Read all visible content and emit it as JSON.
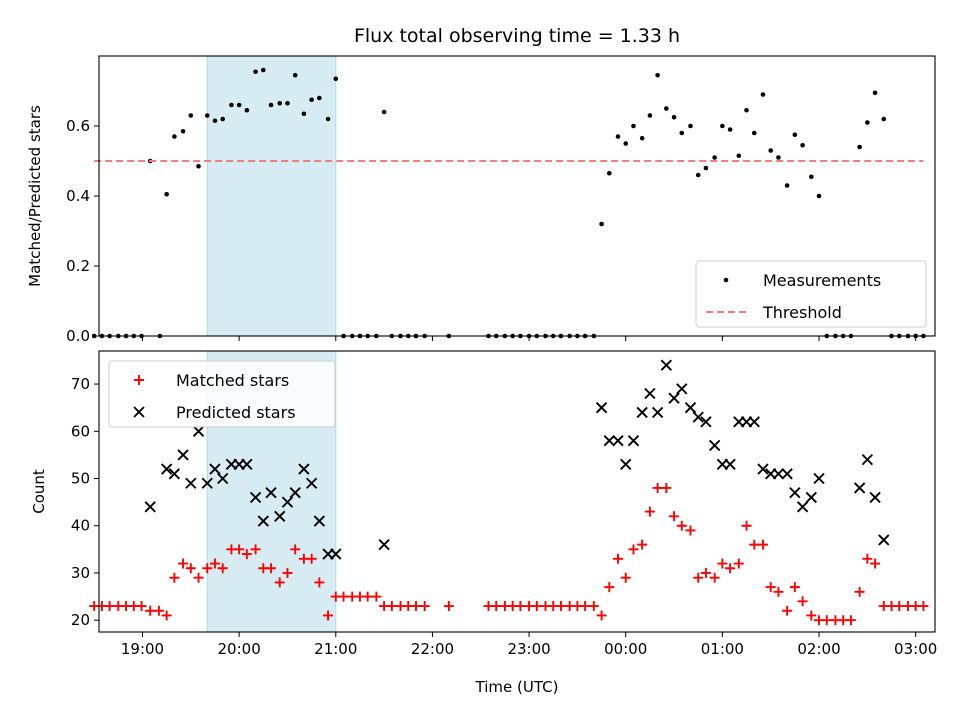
{
  "title": "Flux total observing time = 1.33 h",
  "xlabel": "Time (UTC)",
  "x_ticks": [
    {
      "t": 1.0,
      "label": "19:00"
    },
    {
      "t": 2.0,
      "label": "20:00"
    },
    {
      "t": 3.0,
      "label": "21:00"
    },
    {
      "t": 4.0,
      "label": "22:00"
    },
    {
      "t": 5.0,
      "label": "23:00"
    },
    {
      "t": 6.0,
      "label": "00:00"
    },
    {
      "t": 7.0,
      "label": "01:00"
    },
    {
      "t": 8.0,
      "label": "02:00"
    },
    {
      "t": 9.0,
      "label": "03:00"
    }
  ],
  "highlight": {
    "start": 1.67,
    "end": 3.0,
    "color": "#add8e6"
  },
  "chart_data": [
    {
      "type": "scatter",
      "ylabel": "Matched/Predicted stars",
      "xlim": [
        0.55,
        9.2
      ],
      "ylim": [
        0,
        0.8
      ],
      "y_ticks": [
        {
          "v": 0.0,
          "label": "0.0"
        },
        {
          "v": 0.2,
          "label": "0.2"
        },
        {
          "v": 0.4,
          "label": "0.4"
        },
        {
          "v": 0.6,
          "label": "0.6"
        }
      ],
      "legend": {
        "position": "lower-right"
      },
      "series": [
        {
          "name": "Measurements",
          "color": "#000000",
          "marker": "dot",
          "points": [
            [
              0.5,
              0
            ],
            [
              0.58,
              0
            ],
            [
              0.66,
              0
            ],
            [
              0.75,
              0
            ],
            [
              0.83,
              0
            ],
            [
              0.91,
              0
            ],
            [
              0.99,
              0
            ],
            [
              1.08,
              0.5
            ],
            [
              1.18,
              0
            ],
            [
              1.25,
              0.405
            ],
            [
              1.33,
              0.57
            ],
            [
              1.42,
              0.585
            ],
            [
              1.5,
              0.63
            ],
            [
              1.58,
              0.485
            ],
            [
              1.67,
              0.63
            ],
            [
              1.75,
              0.615
            ],
            [
              1.83,
              0.62
            ],
            [
              1.92,
              0.66
            ],
            [
              2.0,
              0.66
            ],
            [
              2.08,
              0.645
            ],
            [
              2.17,
              0.755
            ],
            [
              2.25,
              0.76
            ],
            [
              2.33,
              0.66
            ],
            [
              2.42,
              0.665
            ],
            [
              2.5,
              0.665
            ],
            [
              2.58,
              0.745
            ],
            [
              2.67,
              0.635
            ],
            [
              2.75,
              0.675
            ],
            [
              2.83,
              0.68
            ],
            [
              2.92,
              0.62
            ],
            [
              3.0,
              0.735
            ],
            [
              3.08,
              0
            ],
            [
              3.17,
              0
            ],
            [
              3.25,
              0
            ],
            [
              3.33,
              0
            ],
            [
              3.42,
              0
            ],
            [
              3.5,
              0.64
            ],
            [
              3.58,
              0
            ],
            [
              3.67,
              0
            ],
            [
              3.75,
              0
            ],
            [
              3.83,
              0
            ],
            [
              3.92,
              0
            ],
            [
              4.17,
              0
            ],
            [
              4.58,
              0
            ],
            [
              4.66,
              0
            ],
            [
              4.75,
              0
            ],
            [
              4.83,
              0
            ],
            [
              4.91,
              0
            ],
            [
              5.0,
              0
            ],
            [
              5.08,
              0
            ],
            [
              5.17,
              0
            ],
            [
              5.25,
              0
            ],
            [
              5.33,
              0
            ],
            [
              5.42,
              0
            ],
            [
              5.5,
              0
            ],
            [
              5.58,
              0
            ],
            [
              5.67,
              0
            ],
            [
              5.75,
              0.32
            ],
            [
              5.83,
              0.465
            ],
            [
              5.92,
              0.57
            ],
            [
              6.0,
              0.55
            ],
            [
              6.08,
              0.6
            ],
            [
              6.17,
              0.565
            ],
            [
              6.25,
              0.63
            ],
            [
              6.33,
              0.745
            ],
            [
              6.42,
              0.65
            ],
            [
              6.5,
              0.625
            ],
            [
              6.58,
              0.58
            ],
            [
              6.67,
              0.6
            ],
            [
              6.75,
              0.46
            ],
            [
              6.83,
              0.48
            ],
            [
              6.92,
              0.51
            ],
            [
              7.0,
              0.6
            ],
            [
              7.08,
              0.59
            ],
            [
              7.17,
              0.515
            ],
            [
              7.25,
              0.645
            ],
            [
              7.33,
              0.58
            ],
            [
              7.42,
              0.69
            ],
            [
              7.5,
              0.53
            ],
            [
              7.58,
              0.51
            ],
            [
              7.67,
              0.43
            ],
            [
              7.75,
              0.575
            ],
            [
              7.83,
              0.545
            ],
            [
              7.92,
              0.455
            ],
            [
              8.0,
              0.4
            ],
            [
              8.08,
              0
            ],
            [
              8.17,
              0
            ],
            [
              8.25,
              0
            ],
            [
              8.33,
              0
            ],
            [
              8.42,
              0.54
            ],
            [
              8.5,
              0.61
            ],
            [
              8.58,
              0.695
            ],
            [
              8.67,
              0.62
            ],
            [
              8.75,
              0
            ],
            [
              8.83,
              0
            ],
            [
              8.92,
              0
            ],
            [
              9.0,
              0
            ],
            [
              9.08,
              0
            ]
          ]
        },
        {
          "name": "Threshold",
          "color": "#f08080",
          "marker": "dashed-line",
          "points": [
            [
              0.5,
              0.5
            ],
            [
              9.08,
              0.5
            ]
          ]
        }
      ]
    },
    {
      "type": "scatter",
      "ylabel": "Count",
      "xlim": [
        0.55,
        9.2
      ],
      "ylim": [
        17.5,
        77
      ],
      "y_ticks": [
        {
          "v": 20,
          "label": "20"
        },
        {
          "v": 30,
          "label": "30"
        },
        {
          "v": 40,
          "label": "40"
        },
        {
          "v": 50,
          "label": "50"
        },
        {
          "v": 60,
          "label": "60"
        },
        {
          "v": 70,
          "label": "70"
        }
      ],
      "legend": {
        "position": "top-left"
      },
      "series": [
        {
          "name": "Matched stars",
          "color": "#ff0000",
          "marker": "plus",
          "points": [
            [
              0.5,
              23
            ],
            [
              0.58,
              23
            ],
            [
              0.66,
              23
            ],
            [
              0.75,
              23
            ],
            [
              0.83,
              23
            ],
            [
              0.91,
              23
            ],
            [
              0.99,
              23
            ],
            [
              1.08,
              22
            ],
            [
              1.17,
              22
            ],
            [
              1.25,
              21
            ],
            [
              1.33,
              29
            ],
            [
              1.42,
              32
            ],
            [
              1.5,
              31
            ],
            [
              1.58,
              29
            ],
            [
              1.67,
              31
            ],
            [
              1.75,
              32
            ],
            [
              1.83,
              31
            ],
            [
              1.92,
              35
            ],
            [
              2.0,
              35
            ],
            [
              2.08,
              34
            ],
            [
              2.17,
              35
            ],
            [
              2.25,
              31
            ],
            [
              2.33,
              31
            ],
            [
              2.42,
              28
            ],
            [
              2.5,
              30
            ],
            [
              2.58,
              35
            ],
            [
              2.67,
              33
            ],
            [
              2.75,
              33
            ],
            [
              2.83,
              28
            ],
            [
              2.92,
              21
            ],
            [
              3.0,
              25
            ],
            [
              3.08,
              25
            ],
            [
              3.17,
              25
            ],
            [
              3.25,
              25
            ],
            [
              3.33,
              25
            ],
            [
              3.42,
              25
            ],
            [
              3.5,
              23
            ],
            [
              3.58,
              23
            ],
            [
              3.67,
              23
            ],
            [
              3.75,
              23
            ],
            [
              3.83,
              23
            ],
            [
              3.92,
              23
            ],
            [
              4.17,
              23
            ],
            [
              4.58,
              23
            ],
            [
              4.66,
              23
            ],
            [
              4.75,
              23
            ],
            [
              4.83,
              23
            ],
            [
              4.91,
              23
            ],
            [
              5.0,
              23
            ],
            [
              5.08,
              23
            ],
            [
              5.17,
              23
            ],
            [
              5.25,
              23
            ],
            [
              5.33,
              23
            ],
            [
              5.42,
              23
            ],
            [
              5.5,
              23
            ],
            [
              5.58,
              23
            ],
            [
              5.67,
              23
            ],
            [
              5.75,
              21
            ],
            [
              5.83,
              27
            ],
            [
              5.92,
              33
            ],
            [
              6.0,
              29
            ],
            [
              6.08,
              35
            ],
            [
              6.17,
              36
            ],
            [
              6.25,
              43
            ],
            [
              6.33,
              48
            ],
            [
              6.42,
              48
            ],
            [
              6.5,
              42
            ],
            [
              6.58,
              40
            ],
            [
              6.67,
              39
            ],
            [
              6.75,
              29
            ],
            [
              6.83,
              30
            ],
            [
              6.92,
              29
            ],
            [
              7.0,
              32
            ],
            [
              7.08,
              31
            ],
            [
              7.17,
              32
            ],
            [
              7.25,
              40
            ],
            [
              7.33,
              36
            ],
            [
              7.42,
              36
            ],
            [
              7.5,
              27
            ],
            [
              7.58,
              26
            ],
            [
              7.67,
              22
            ],
            [
              7.75,
              27
            ],
            [
              7.83,
              24
            ],
            [
              7.92,
              21
            ],
            [
              8.0,
              20
            ],
            [
              8.08,
              20
            ],
            [
              8.17,
              20
            ],
            [
              8.25,
              20
            ],
            [
              8.33,
              20
            ],
            [
              8.42,
              26
            ],
            [
              8.5,
              33
            ],
            [
              8.58,
              32
            ],
            [
              8.67,
              23
            ],
            [
              8.75,
              23
            ],
            [
              8.83,
              23
            ],
            [
              8.92,
              23
            ],
            [
              9.0,
              23
            ],
            [
              9.08,
              23
            ]
          ]
        },
        {
          "name": "Predicted stars",
          "color": "#000000",
          "marker": "x",
          "points": [
            [
              1.08,
              44
            ],
            [
              1.25,
              52
            ],
            [
              1.33,
              51
            ],
            [
              1.42,
              55
            ],
            [
              1.5,
              49
            ],
            [
              1.58,
              60
            ],
            [
              1.67,
              49
            ],
            [
              1.75,
              52
            ],
            [
              1.83,
              50
            ],
            [
              1.92,
              53
            ],
            [
              2.0,
              53
            ],
            [
              2.08,
              53
            ],
            [
              2.17,
              46
            ],
            [
              2.25,
              41
            ],
            [
              2.33,
              47
            ],
            [
              2.42,
              42
            ],
            [
              2.5,
              45
            ],
            [
              2.58,
              47
            ],
            [
              2.67,
              52
            ],
            [
              2.75,
              49
            ],
            [
              2.83,
              41
            ],
            [
              2.92,
              34
            ],
            [
              3.0,
              34
            ],
            [
              3.5,
              36
            ],
            [
              5.75,
              65
            ],
            [
              5.83,
              58
            ],
            [
              5.92,
              58
            ],
            [
              6.0,
              53
            ],
            [
              6.08,
              58
            ],
            [
              6.17,
              64
            ],
            [
              6.25,
              68
            ],
            [
              6.33,
              64
            ],
            [
              6.42,
              74
            ],
            [
              6.5,
              67
            ],
            [
              6.58,
              69
            ],
            [
              6.67,
              65
            ],
            [
              6.75,
              63
            ],
            [
              6.83,
              62
            ],
            [
              6.92,
              57
            ],
            [
              7.0,
              53
            ],
            [
              7.08,
              53
            ],
            [
              7.17,
              62
            ],
            [
              7.25,
              62
            ],
            [
              7.33,
              62
            ],
            [
              7.42,
              52
            ],
            [
              7.5,
              51
            ],
            [
              7.58,
              51
            ],
            [
              7.67,
              51
            ],
            [
              7.75,
              47
            ],
            [
              7.83,
              44
            ],
            [
              7.92,
              46
            ],
            [
              8.0,
              50
            ],
            [
              8.42,
              48
            ],
            [
              8.5,
              54
            ],
            [
              8.58,
              46
            ],
            [
              8.67,
              37
            ]
          ]
        }
      ]
    }
  ]
}
